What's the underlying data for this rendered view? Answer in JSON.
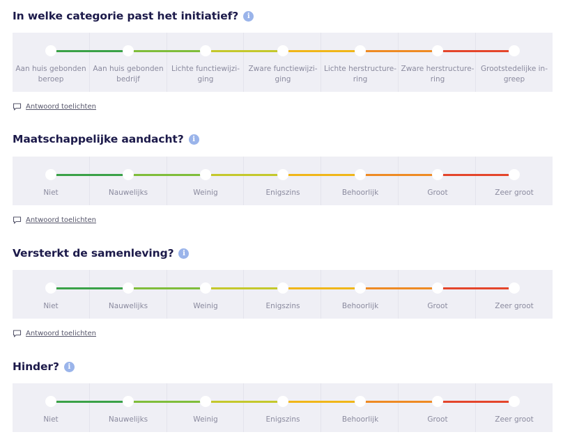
{
  "questions": [
    {
      "title": "In welke categorie past het initiatief?",
      "info_icon": "i",
      "options": [
        [
          "Aan huis gebonden",
          "beroep"
        ],
        [
          "Aan huis gebonden",
          "bedrijf"
        ],
        [
          "Lichte functiewijzi-",
          "ging"
        ],
        [
          "Zware functiewijzi-",
          "ging"
        ],
        [
          "Lichte herstructure-",
          "ring"
        ],
        [
          "Zware herstructure-",
          "ring"
        ],
        [
          "Grootstedelijke in-",
          "greep"
        ]
      ],
      "comment_link": "Antwoord toelichten"
    },
    {
      "title": "Maatschappelijke aandacht?",
      "info_icon": "i",
      "options": [
        "Niet",
        "Nauwelijks",
        "Weinig",
        "Enigszins",
        "Behoorlijk",
        "Groot",
        "Zeer groot"
      ],
      "comment_link": "Antwoord toelichten"
    },
    {
      "title": "Versterkt de samenleving?",
      "info_icon": "i",
      "options": [
        "Niet",
        "Nauwelijks",
        "Weinig",
        "Enigszins",
        "Behoorlijk",
        "Groot",
        "Zeer groot"
      ],
      "comment_link": "Antwoord toelichten"
    },
    {
      "title": "Hinder?",
      "info_icon": "i",
      "options": [
        "Niet",
        "Nauwelijks",
        "Weinig",
        "Enigszins",
        "Behoorlijk",
        "Groot",
        "Zeer groot"
      ]
    }
  ],
  "colors": {
    "title": "#1c1a4a",
    "panel_bg": "#efeff5",
    "info_icon": "#9ab4ea",
    "segments": [
      "#3aa147",
      "#7fbd3a",
      "#c4c82c",
      "#f0b619",
      "#ee8a23",
      "#e4452b"
    ]
  },
  "icons": {
    "info": "info-circle-icon",
    "comment": "speech-bubble-icon"
  }
}
